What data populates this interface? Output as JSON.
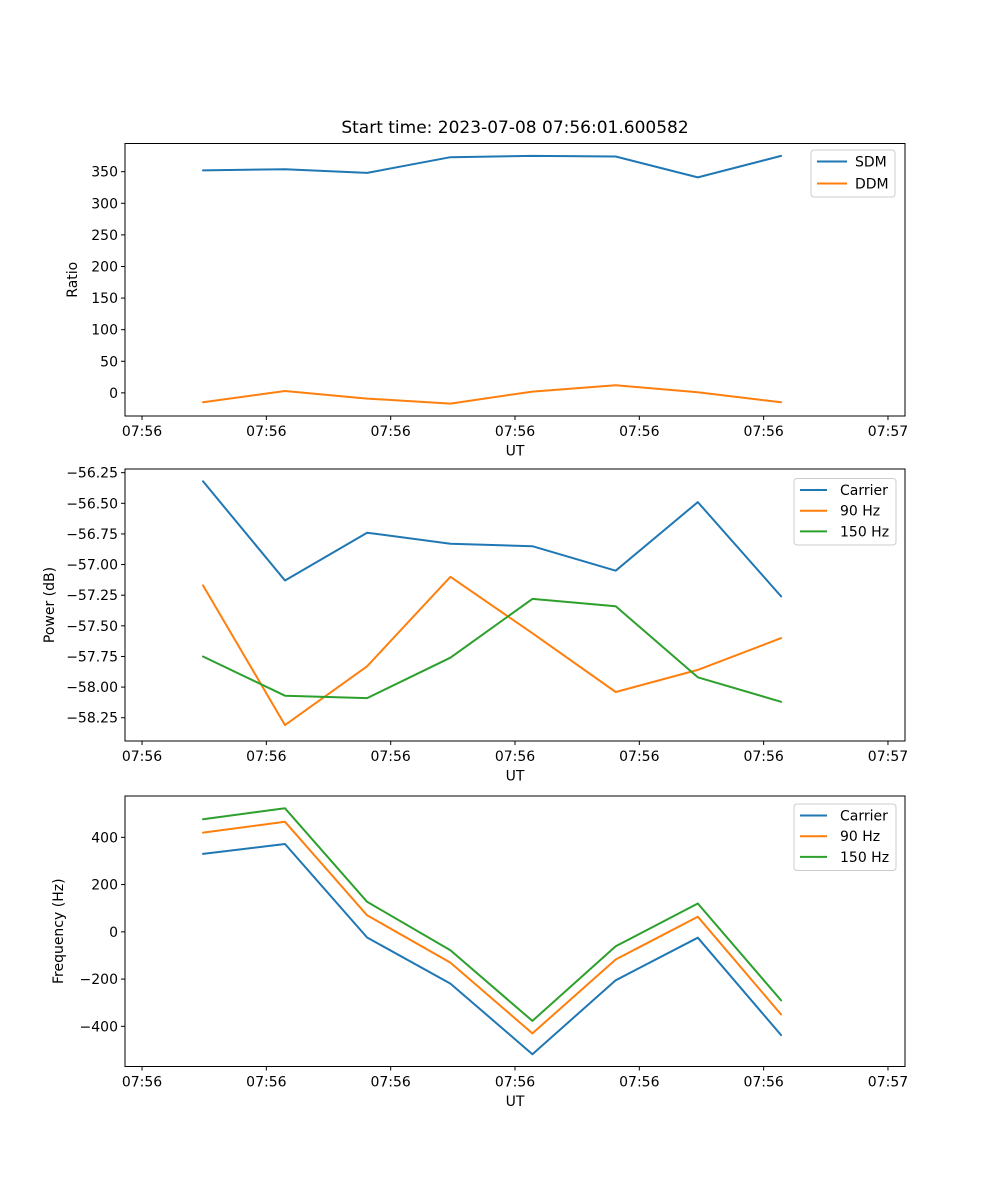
{
  "figure": {
    "background": "#ffffff",
    "title": "Start time: 2023-07-08 07:56:01.600582"
  },
  "palette": {
    "blue": "#1f77b4",
    "orange": "#ff7f0e",
    "green": "#2ca02c",
    "spine": "#000000",
    "legend_border": "#cccccc"
  },
  "chart_data": [
    {
      "type": "line",
      "title": "Start time: 2023-07-08 07:56:01.600582",
      "xlabel": "UT",
      "ylabel": "Ratio",
      "grid": false,
      "x_unit": "seconds after 07:56:00 UT",
      "x": [
        4.9,
        11.5,
        18.1,
        24.8,
        31.4,
        38.1,
        44.7,
        51.4
      ],
      "xlim": [
        -1.37,
        61.37
      ],
      "xticks": [
        {
          "s": 0,
          "label": "07:56"
        },
        {
          "s": 10,
          "label": "07:56"
        },
        {
          "s": 20,
          "label": "07:56"
        },
        {
          "s": 30,
          "label": "07:56"
        },
        {
          "s": 40,
          "label": "07:56"
        },
        {
          "s": 50,
          "label": "07:56"
        },
        {
          "s": 60,
          "label": "07:57"
        }
      ],
      "ylim": [
        -36.6,
        394.6
      ],
      "yticks": [
        {
          "v": 0,
          "label": "0"
        },
        {
          "v": 50,
          "label": "50"
        },
        {
          "v": 100,
          "label": "100"
        },
        {
          "v": 150,
          "label": "150"
        },
        {
          "v": 200,
          "label": "200"
        },
        {
          "v": 250,
          "label": "250"
        },
        {
          "v": 300,
          "label": "300"
        },
        {
          "v": 350,
          "label": "350"
        }
      ],
      "series": [
        {
          "name": "SDM",
          "color": "#1f77b4",
          "values": [
            352,
            354,
            348,
            373,
            375,
            374,
            341,
            375
          ]
        },
        {
          "name": "DDM",
          "color": "#ff7f0e",
          "values": [
            -15,
            3,
            -9,
            -17,
            2,
            12,
            1,
            -15
          ]
        }
      ],
      "legend": {
        "position": "upper right",
        "labels": [
          "SDM",
          "DDM"
        ]
      }
    },
    {
      "type": "line",
      "title": "",
      "xlabel": "UT",
      "ylabel": "Power (dB)",
      "grid": false,
      "x_unit": "seconds after 07:56:00 UT",
      "x": [
        4.9,
        11.5,
        18.1,
        24.8,
        31.4,
        38.1,
        44.7,
        51.4
      ],
      "xlim": [
        -1.37,
        61.37
      ],
      "xticks": [
        {
          "s": 0,
          "label": "07:56"
        },
        {
          "s": 10,
          "label": "07:56"
        },
        {
          "s": 20,
          "label": "07:56"
        },
        {
          "s": 30,
          "label": "07:56"
        },
        {
          "s": 40,
          "label": "07:56"
        },
        {
          "s": 50,
          "label": "07:56"
        },
        {
          "s": 60,
          "label": "07:57"
        }
      ],
      "ylim": [
        -58.44,
        -56.22
      ],
      "yticks": [
        {
          "v": -56.25,
          "label": "−56.25"
        },
        {
          "v": -56.5,
          "label": "−56.50"
        },
        {
          "v": -56.75,
          "label": "−56.75"
        },
        {
          "v": -57.0,
          "label": "−57.00"
        },
        {
          "v": -57.25,
          "label": "−57.25"
        },
        {
          "v": -57.5,
          "label": "−57.50"
        },
        {
          "v": -57.75,
          "label": "−57.75"
        },
        {
          "v": -58.0,
          "label": "−58.00"
        },
        {
          "v": -58.25,
          "label": "−58.25"
        }
      ],
      "series": [
        {
          "name": "Carrier",
          "color": "#1f77b4",
          "values": [
            -56.32,
            -57.13,
            -56.74,
            -56.83,
            -56.85,
            -57.05,
            -56.49,
            -57.26
          ]
        },
        {
          "name": "90 Hz",
          "color": "#ff7f0e",
          "values": [
            -57.17,
            -58.31,
            -57.83,
            -57.1,
            -57.56,
            -58.04,
            -57.86,
            -57.6
          ]
        },
        {
          "name": "150 Hz",
          "color": "#2ca02c",
          "values": [
            -57.75,
            -58.07,
            -58.09,
            -57.76,
            -57.28,
            -57.34,
            -57.92,
            -58.12
          ]
        }
      ],
      "legend": {
        "position": "upper right",
        "labels": [
          "Carrier",
          "90 Hz",
          "150 Hz"
        ]
      }
    },
    {
      "type": "line",
      "title": "",
      "xlabel": "UT",
      "ylabel": "Frequency (Hz)",
      "grid": false,
      "x_unit": "seconds after 07:56:00 UT",
      "x": [
        4.9,
        11.5,
        18.1,
        24.8,
        31.4,
        38.1,
        44.7,
        51.4
      ],
      "xlim": [
        -1.37,
        61.37
      ],
      "xticks": [
        {
          "s": 0,
          "label": "07:56"
        },
        {
          "s": 10,
          "label": "07:56"
        },
        {
          "s": 20,
          "label": "07:56"
        },
        {
          "s": 30,
          "label": "07:56"
        },
        {
          "s": 40,
          "label": "07:56"
        },
        {
          "s": 50,
          "label": "07:56"
        },
        {
          "s": 60,
          "label": "07:57"
        }
      ],
      "ylim": [
        -570,
        575
      ],
      "yticks": [
        {
          "v": 400,
          "label": "400"
        },
        {
          "v": 200,
          "label": "200"
        },
        {
          "v": 0,
          "label": "0"
        },
        {
          "v": -200,
          "label": "−200"
        },
        {
          "v": -400,
          "label": "−400"
        }
      ],
      "series": [
        {
          "name": "Carrier",
          "color": "#1f77b4",
          "values": [
            330,
            372,
            -24,
            -219,
            -518,
            -205,
            -25,
            -437
          ]
        },
        {
          "name": "90 Hz",
          "color": "#ff7f0e",
          "values": [
            420,
            466,
            70,
            -130,
            -430,
            -117,
            64,
            -350
          ]
        },
        {
          "name": "150 Hz",
          "color": "#2ca02c",
          "values": [
            477,
            523,
            127,
            -78,
            -377,
            -61,
            120,
            -290
          ]
        }
      ],
      "legend": {
        "position": "upper right",
        "labels": [
          "Carrier",
          "90 Hz",
          "150 Hz"
        ]
      }
    }
  ]
}
